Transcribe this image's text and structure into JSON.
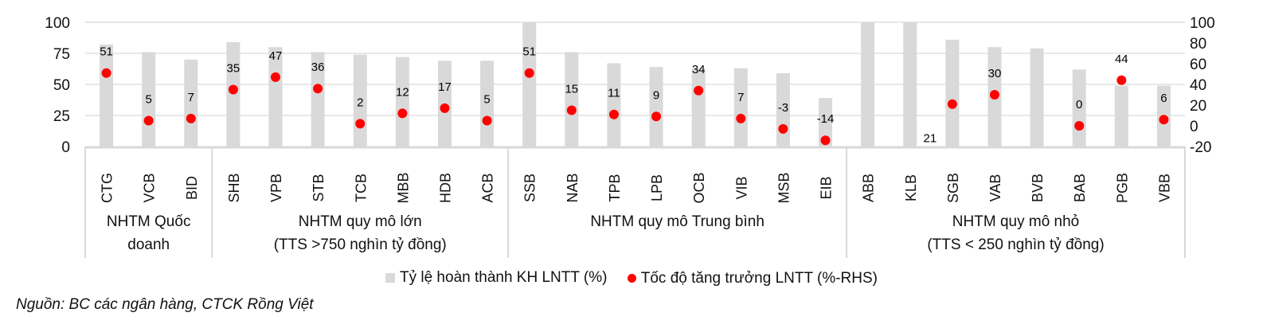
{
  "chart_data": {
    "type": "bar",
    "title": "",
    "categories": [
      "CTG",
      "VCB",
      "BID",
      "SHB",
      "VPB",
      "STB",
      "TCB",
      "MBB",
      "HDB",
      "ACB",
      "SSB",
      "NAB",
      "TPB",
      "LPB",
      "OCB",
      "VIB",
      "MSB",
      "EIB",
      "ABB",
      "KLB",
      "SGB",
      "VAB",
      "BVB",
      "BAB",
      "PGB",
      "VBB"
    ],
    "groups": [
      {
        "label_lines": [
          "NHTM Quốc",
          "doanh"
        ],
        "start": 0,
        "end": 2
      },
      {
        "label_lines": [
          "NHTM quy mô lớn",
          "(TTS >750 nghìn tỷ đồng)"
        ],
        "start": 3,
        "end": 9
      },
      {
        "label_lines": [
          "NHTM quy mô Trung bình"
        ],
        "start": 10,
        "end": 17
      },
      {
        "label_lines": [
          "NHTM quy mô nhỏ",
          "(TTS < 250 nghìn tỷ đồng)"
        ],
        "start": 18,
        "end": 25
      }
    ],
    "series": [
      {
        "name": "Tỷ lệ hoàn thành KH LNTT (%)",
        "type": "bar",
        "axis": "left",
        "color": "#d9d9d9",
        "values": [
          82,
          76,
          70,
          84,
          80,
          76,
          74,
          72,
          69,
          69,
          100,
          76,
          67,
          64,
          63,
          63,
          59,
          39,
          100,
          100,
          86,
          80,
          79,
          62,
          49,
          49
        ]
      },
      {
        "name": "Tốc độ tăng trưởng LNTT (%-RHS)",
        "type": "scatter",
        "axis": "right",
        "color": "#ff0000",
        "values": [
          51,
          5,
          7,
          35,
          47,
          36,
          2,
          12,
          17,
          5,
          51,
          15,
          11,
          9,
          34,
          7,
          -3,
          -14,
          null,
          null,
          21,
          30,
          null,
          0,
          44,
          6
        ],
        "labels": [
          "51",
          "5",
          "7",
          "35",
          "47",
          "36",
          "2",
          "12",
          "17",
          "5",
          "51",
          "15",
          "11",
          "9",
          "34",
          "7",
          "-3",
          "-14",
          "",
          "",
          "21",
          "30",
          "",
          "0",
          "44",
          "6"
        ]
      }
    ],
    "left_axis": {
      "min": 0,
      "max": 100,
      "ticks": [
        "0",
        "25",
        "50",
        "75",
        "100"
      ]
    },
    "right_axis": {
      "min": -20,
      "max": 100,
      "ticks": [
        "-20",
        "0",
        "20",
        "40",
        "60",
        "80",
        "100"
      ]
    },
    "grid": true,
    "legend_position": "bottom"
  },
  "legend": {
    "bar_label": "Tỷ lệ hoàn thành KH LNTT (%)",
    "dot_label": "Tốc độ tăng trưởng LNTT (%-RHS)"
  },
  "source": "Nguồn: BC các ngân hàng, CTCK Rồng Việt"
}
